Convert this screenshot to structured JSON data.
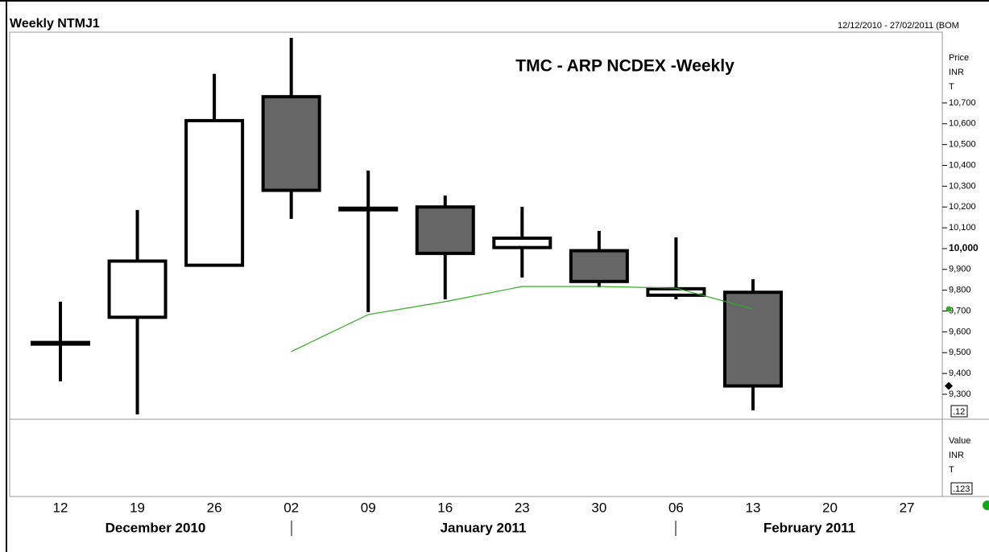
{
  "chart_data": {
    "type": "candlestick",
    "window_title": "Weekly NTMJ1",
    "date_range": "12/12/2010 - 27/02/2011 (BOM",
    "title": "TMC - ARP NCDEX -Weekly",
    "price_axis_label": [
      "Price",
      "INR",
      "T"
    ],
    "price_scale_box": ".12",
    "value_axis_label": [
      "Value",
      "INR",
      "T"
    ],
    "value_scale_box": ".123",
    "categories": [
      "12",
      "19",
      "26",
      "02",
      "09",
      "16",
      "23",
      "30",
      "06",
      "13",
      "20",
      "27"
    ],
    "months": [
      "December 2010",
      "January 2011",
      "February 2011"
    ],
    "open": [
      9545,
      9670,
      9920,
      10730,
      10190,
      10200,
      10005,
      9990,
      9776,
      9790,
      null,
      null
    ],
    "high": [
      9745,
      10186,
      10840,
      11013,
      10375,
      10255,
      10201,
      10085,
      10054,
      9853,
      null,
      null
    ],
    "low": [
      9362,
      9203,
      9920,
      10143,
      9695,
      9756,
      9861,
      9814,
      9756,
      9223,
      null,
      null
    ],
    "close": [
      9545,
      9940,
      10615,
      10280,
      10190,
      9977,
      10050,
      9842,
      9807,
      9340,
      null,
      null
    ],
    "up_color": "#ffffff",
    "down_color": "#666666",
    "series": [
      {
        "color": "#33aa22",
        "values": [
          null,
          null,
          null,
          9505,
          9683,
          9745,
          9818,
          9818,
          9810,
          9710,
          null,
          null
        ]
      }
    ],
    "ylim": [
      9180,
      11040
    ],
    "yticks": [
      {
        "value": 9300,
        "label": "9,300"
      },
      {
        "value": 9400,
        "label": "9,400"
      },
      {
        "value": 9500,
        "label": "9,500"
      },
      {
        "value": 9600,
        "label": "9,600"
      },
      {
        "value": 9700,
        "label": "9,700"
      },
      {
        "value": 9800,
        "label": "9,800"
      },
      {
        "value": 9900,
        "label": "9,900"
      },
      {
        "value": 10000,
        "label": "10,000"
      },
      {
        "value": 10100,
        "label": "10,100"
      },
      {
        "value": 10200,
        "label": "10,200"
      },
      {
        "value": 10300,
        "label": "10,300"
      },
      {
        "value": 10400,
        "label": "10,400"
      },
      {
        "value": 10500,
        "label": "10,500"
      },
      {
        "value": 10600,
        "label": "10,600"
      },
      {
        "value": 10700,
        "label": "10,700"
      }
    ]
  }
}
